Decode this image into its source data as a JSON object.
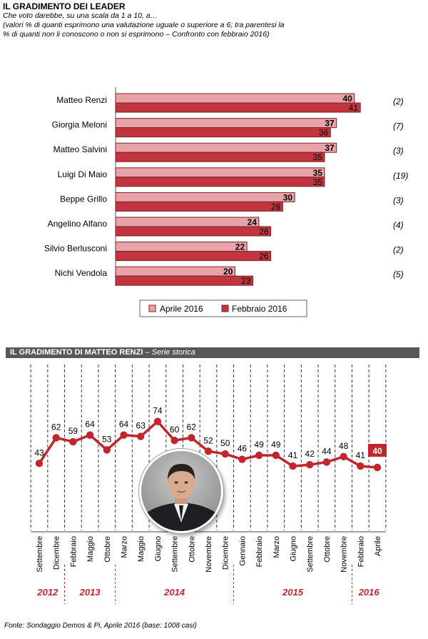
{
  "header": {
    "title": "IL GRADIMENTO DEI LEADER",
    "subtitle_line1": "Che voto darebbe, su una scala da 1 a 10, a…",
    "subtitle_line2": "(valori % di quanti esprimono una valutazione uguale o superiore a 6; tra parentesi la",
    "subtitle_line3": "% di quanti non li conoscono o non si esprimono – Confronto con febbraio 2016)"
  },
  "banner": {
    "title": "IL GRADIMENTO DI MATTEO RENZI",
    "separator": " – ",
    "subtitle": "Serie storica"
  },
  "source": "Fonte: Sondaggio Demos & Pi, Aprile 2016 (base: 1008 casi)",
  "colors": {
    "april_fill": "#e8a3a8",
    "april_stroke": "#7a2026",
    "feb_fill": "#c0353e",
    "feb_stroke": "#7a2026",
    "line": "#c0272d",
    "year_label": "#c0272d",
    "highlight_box": "#c0272d"
  },
  "chart_data": [
    {
      "type": "bar",
      "orientation": "horizontal",
      "categories": [
        "Matteo Renzi",
        "Giorgia Meloni",
        "Matteo Salvini",
        "Luigi Di Maio",
        "Beppe Grillo",
        "Angelino Alfano",
        "Silvio Berlusconi",
        "Nichi Vendola"
      ],
      "series": [
        {
          "name": "Aprile 2016",
          "values": [
            40,
            37,
            37,
            35,
            30,
            24,
            22,
            20
          ]
        },
        {
          "name": "Febbraio 2016",
          "values": [
            41,
            36,
            35,
            35,
            28,
            26,
            26,
            23
          ]
        }
      ],
      "annotations": [
        "(2)",
        "(7)",
        "(3)",
        "(19)",
        "(3)",
        "(4)",
        "(2)",
        "(5)"
      ],
      "xlim": [
        0,
        50
      ],
      "legend": "bottom"
    },
    {
      "type": "line",
      "x": [
        "Settembre",
        "Dicembre",
        "Febbraio",
        "Maggio",
        "Ottobre",
        "Marzo",
        "Maggio",
        "Giugno",
        "Settembre",
        "Ottobre",
        "Novembre",
        "Dicembre",
        "Gennaio",
        "Febbraio",
        "Marzo",
        "Giugno",
        "Settembre",
        "Ottobre",
        "Novembre",
        "Febbraio",
        "Aprile"
      ],
      "values": [
        43,
        62,
        59,
        64,
        53,
        64,
        63,
        74,
        60,
        62,
        52,
        50,
        46,
        49,
        49,
        41,
        42,
        44,
        48,
        41,
        40
      ],
      "years": [
        {
          "label": "2012",
          "start": 0,
          "end": 1
        },
        {
          "label": "2013",
          "start": 2,
          "end": 4
        },
        {
          "label": "2014",
          "start": 5,
          "end": 11
        },
        {
          "label": "2015",
          "start": 12,
          "end": 18
        },
        {
          "label": "2016",
          "start": 19,
          "end": 20
        }
      ],
      "ylim": [
        30,
        80
      ],
      "grid": "vertical dashed",
      "highlight_last": true
    }
  ]
}
